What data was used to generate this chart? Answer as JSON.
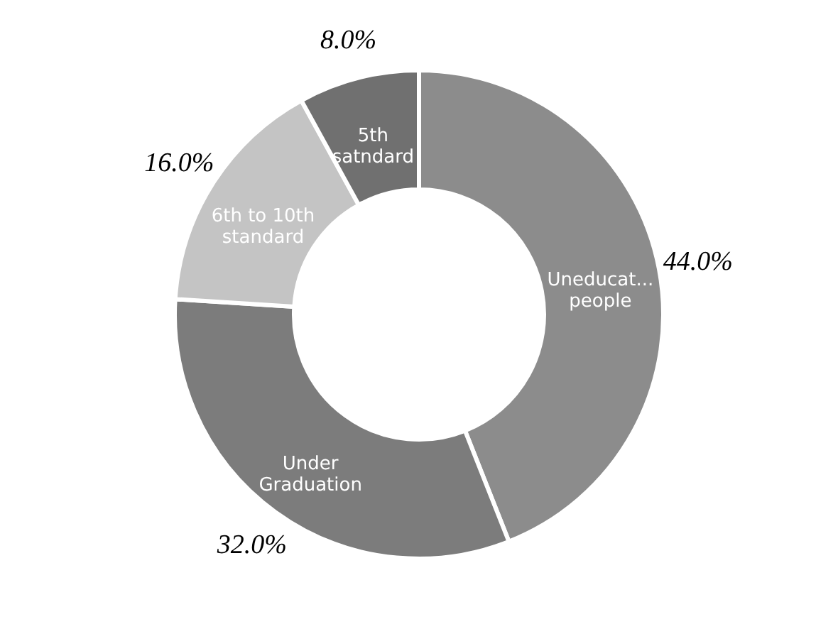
{
  "chart_data": {
    "type": "donut",
    "categories": [
      "Uneducat...\npeople",
      "Under\nGraduation",
      "6th to 10th\nstandard",
      "5th\nsatndard"
    ],
    "values": [
      44,
      32,
      16,
      8
    ],
    "colors": [
      "#8c8c8c",
      "#7c7c7c",
      "#c4c4c4",
      "#707070"
    ],
    "value_labels": [
      "44.0%",
      "32.0%",
      "16.0%",
      "8.0%"
    ]
  }
}
